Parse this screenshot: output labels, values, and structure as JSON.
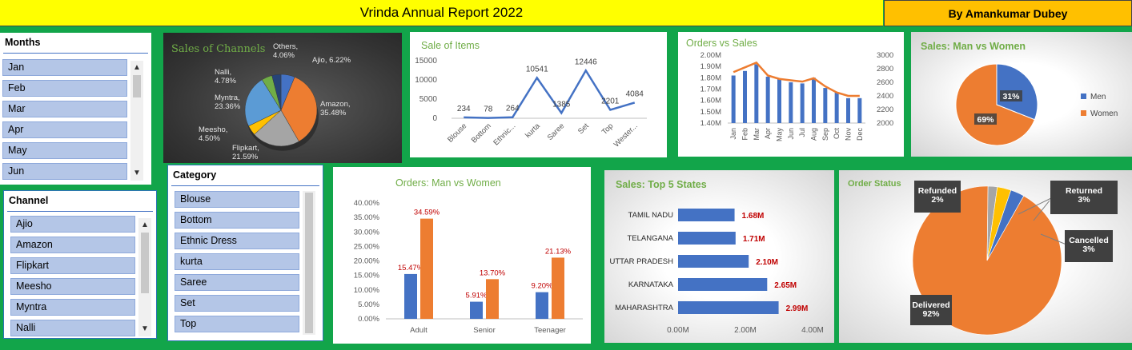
{
  "header": {
    "title": "Vrinda Annual Report 2022",
    "author": "By Amankumar Dubey"
  },
  "slicers": {
    "months": {
      "title": "Months",
      "items": [
        "Jan",
        "Feb",
        "Mar",
        "Apr",
        "May",
        "Jun"
      ]
    },
    "channel": {
      "title": "Channel",
      "items": [
        "Ajio",
        "Amazon",
        "Flipkart",
        "Meesho",
        "Myntra",
        "Nalli"
      ]
    },
    "category": {
      "title": "Category",
      "items": [
        "Blouse",
        "Bottom",
        "Ethnic Dress",
        "kurta",
        "Saree",
        "Set",
        "Top"
      ]
    }
  },
  "charts": {
    "channels": {
      "title": "Sales of Channels"
    },
    "items": {
      "title": "Sale of Items"
    },
    "orders_sales": {
      "title": "Orders vs Sales"
    },
    "gender": {
      "title": "Sales: Man vs Women"
    },
    "orders_gender": {
      "title": "Orders: Man vs Women"
    },
    "states": {
      "title": "Sales: Top 5 States"
    },
    "status": {
      "title": "Order Status"
    }
  },
  "chart_data": [
    {
      "type": "pie",
      "title": "Sales of Channels",
      "categories": [
        "Ajio",
        "Amazon",
        "Flipkart",
        "Meesho",
        "Myntra",
        "Nalli",
        "Others"
      ],
      "values": [
        6.22,
        35.48,
        21.59,
        4.5,
        23.36,
        4.78,
        4.06
      ],
      "labels": [
        "Ajio, 6.22%",
        "Amazon,|35.48%",
        "Flipkart,|21.59%",
        "Meesho,|4.50%",
        "Myntra,|23.36%",
        "Nalli,|4.78%",
        "Others,|4.06%"
      ],
      "colors": [
        "#4472c4",
        "#ed7d31",
        "#a5a5a5",
        "#ffc000",
        "#5b9bd5",
        "#70ad47",
        "#264478"
      ]
    },
    {
      "type": "line",
      "title": "Sale of Items",
      "categories": [
        "Blouse",
        "Bottom",
        "Ethnic...",
        "kurta",
        "Saree",
        "Set",
        "Top",
        "Wester..."
      ],
      "values": [
        234,
        78,
        264,
        10541,
        1385,
        12446,
        2201,
        4084
      ],
      "yticks": [
        "15000",
        "10000",
        "5000",
        "0"
      ],
      "ylim": [
        0,
        15000
      ],
      "color": "#4472c4"
    },
    {
      "type": "bar",
      "title": "Orders vs Sales",
      "categories": [
        "Jan",
        "Feb",
        "Mar",
        "Apr",
        "May",
        "Jun",
        "Jul",
        "Aug",
        "Sep",
        "Oct",
        "Nov",
        "Dec"
      ],
      "series": [
        {
          "values": [
            1.82,
            1.86,
            1.92,
            1.81,
            1.79,
            1.76,
            1.75,
            1.8,
            1.71,
            1.67,
            1.62,
            1.62
          ],
          "color": "#4472c4"
        },
        {
          "values": [
            2750,
            2820,
            2890,
            2700,
            2650,
            2630,
            2610,
            2660,
            2540,
            2450,
            2400,
            2400
          ],
          "color": "#ed7d31"
        }
      ],
      "yticks_left": [
        "2.00M",
        "1.90M",
        "1.80M",
        "1.70M",
        "1.60M",
        "1.50M",
        "1.40M"
      ],
      "ylim_left": [
        1.4,
        2.0
      ],
      "yticks_right": [
        "3000",
        "2800",
        "2600",
        "2400",
        "2200",
        "2000"
      ],
      "ylim_right": [
        2000,
        3000
      ]
    },
    {
      "type": "pie",
      "title": "Sales: Man vs Women",
      "categories": [
        "Men",
        "Women"
      ],
      "values": [
        31,
        69
      ],
      "labels": [
        "31%",
        "69%"
      ],
      "colors": [
        "#4472c4",
        "#ed7d31"
      ]
    },
    {
      "type": "bar",
      "title": "Orders: Man vs Women",
      "categories": [
        "Adult",
        "Senior",
        "Teenager"
      ],
      "series": [
        {
          "values": [
            15.47,
            5.91,
            9.2
          ],
          "labels": [
            "15.47%",
            "5.91%",
            "9.20%"
          ],
          "color": "#4472c4"
        },
        {
          "values": [
            34.59,
            13.7,
            21.13
          ],
          "labels": [
            "34.59%",
            "13.70%",
            "21.13%"
          ],
          "color": "#ed7d31"
        }
      ],
      "yticks": [
        "40.00%",
        "35.00%",
        "30.00%",
        "25.00%",
        "20.00%",
        "15.00%",
        "10.00%",
        "5.00%",
        "0.00%"
      ],
      "ylim": [
        0,
        40
      ]
    },
    {
      "type": "bar",
      "title": "Sales: Top 5 States",
      "categories": [
        "TAMIL NADU",
        "TELANGANA",
        "UTTAR PRADESH",
        "KARNATAKA",
        "MAHARASHTRA"
      ],
      "values": [
        1.68,
        1.71,
        2.1,
        2.65,
        2.99
      ],
      "labels": [
        "1.68M",
        "1.71M",
        "2.10M",
        "2.65M",
        "2.99M"
      ],
      "xticks": [
        "0.00M",
        "2.00M",
        "4.00M"
      ],
      "xlim": [
        0,
        4
      ],
      "color": "#4472c4"
    },
    {
      "type": "pie",
      "title": "Order Status",
      "categories": [
        "Delivered",
        "Refunded",
        "Returned",
        "Cancelled"
      ],
      "values": [
        92,
        2,
        3,
        3
      ],
      "labels": [
        "Delivered|92%",
        "Refunded|2%",
        "Returned|3%",
        "Cancelled|3%"
      ],
      "colors": [
        "#ed7d31",
        "#a5a5a5",
        "#ffc000",
        "#4472c4"
      ]
    }
  ],
  "legend": {
    "men": "Men",
    "women": "Women"
  }
}
